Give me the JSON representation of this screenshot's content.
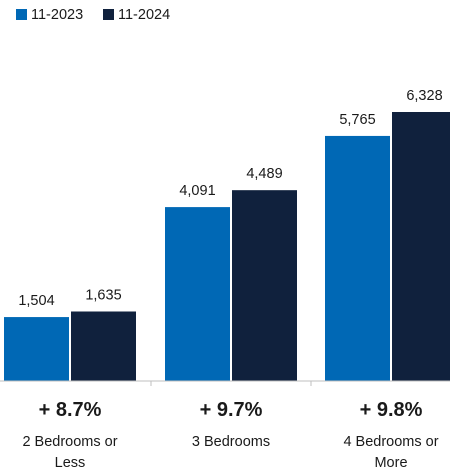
{
  "chart_data": {
    "type": "bar",
    "categories": [
      [
        "2 Bedrooms or",
        "Less"
      ],
      [
        "3 Bedrooms"
      ],
      [
        "4 Bedrooms or",
        "More"
      ]
    ],
    "series": [
      {
        "name": "11-2023",
        "color": "#0068b5",
        "values": [
          1504,
          4091,
          5765
        ],
        "labels": [
          "1,504",
          "4,091",
          "5,765"
        ]
      },
      {
        "name": "11-2024",
        "color": "#10213d",
        "values": [
          1635,
          4489,
          6328
        ],
        "labels": [
          "1,635",
          "4,489",
          "6,328"
        ]
      }
    ],
    "changes": [
      "+ 8.7%",
      "+ 9.7%",
      "+ 9.8%"
    ],
    "legend_position": "top-left",
    "ylim": [
      0,
      6328
    ],
    "grid": false,
    "title": "",
    "xlabel": "",
    "ylabel": ""
  }
}
